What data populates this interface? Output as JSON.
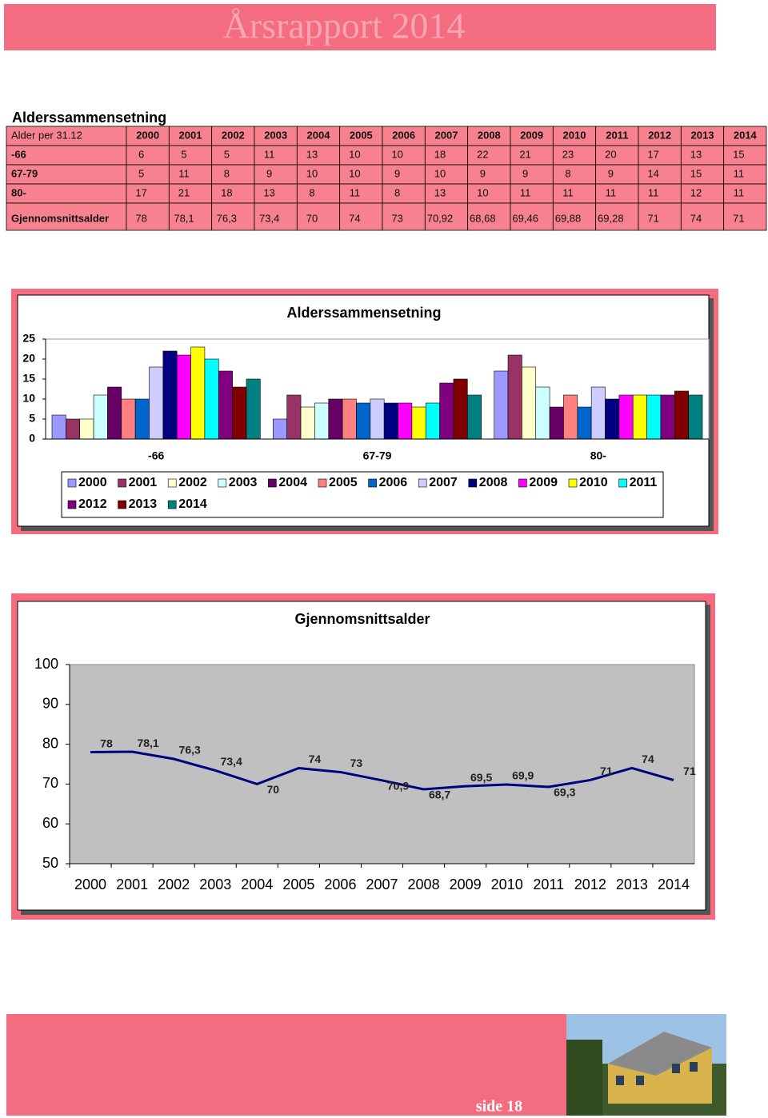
{
  "header": {
    "title": "Årsrapport 2014"
  },
  "section_title": "Alderssammensetning",
  "table": {
    "columns": [
      "Alder per 31.12",
      "2000",
      "2001",
      "2002",
      "2003",
      "2004",
      "2005",
      "2006",
      "2007",
      "2008",
      "2009",
      "2010",
      "2011",
      "2012",
      "2013",
      "2014"
    ],
    "rows": [
      [
        "-66",
        "6",
        "5",
        "5",
        "11",
        "13",
        "10",
        "10",
        "18",
        "22",
        "21",
        "23",
        "20",
        "17",
        "13",
        "15"
      ],
      [
        "67-79",
        "5",
        "11",
        "8",
        "9",
        "10",
        "10",
        "9",
        "10",
        "9",
        "9",
        "8",
        "9",
        "14",
        "15",
        "11"
      ],
      [
        "80-",
        "17",
        "21",
        "18",
        "13",
        "8",
        "11",
        "8",
        "13",
        "10",
        "11",
        "11",
        "11",
        "11",
        "12",
        "11"
      ],
      [
        "Gjennomsnittsalder",
        "78",
        "78,1",
        "76,3",
        "73,4",
        "70",
        "74",
        "73",
        "70,92",
        "68,68",
        "69,46",
        "69,88",
        "69,28",
        "71",
        "74",
        "71"
      ]
    ]
  },
  "chart_data": [
    {
      "type": "bar",
      "title": "Alderssammensetning",
      "categories": [
        "-66",
        "67-79",
        "80-"
      ],
      "ylim": [
        0,
        25
      ],
      "yticks": [
        0,
        5,
        10,
        15,
        20,
        25
      ],
      "legend": "bottom",
      "series": [
        {
          "name": "2000",
          "color": "#9999ff",
          "values": [
            6,
            5,
            17
          ]
        },
        {
          "name": "2001",
          "color": "#993366",
          "values": [
            5,
            11,
            21
          ]
        },
        {
          "name": "2002",
          "color": "#ffffcc",
          "values": [
            5,
            8,
            18
          ]
        },
        {
          "name": "2003",
          "color": "#ccffff",
          "values": [
            11,
            9,
            13
          ]
        },
        {
          "name": "2004",
          "color": "#660066",
          "values": [
            13,
            10,
            8
          ]
        },
        {
          "name": "2005",
          "color": "#ff8080",
          "values": [
            10,
            10,
            11
          ]
        },
        {
          "name": "2006",
          "color": "#0066cc",
          "values": [
            10,
            9,
            8
          ]
        },
        {
          "name": "2007",
          "color": "#ccccff",
          "values": [
            18,
            10,
            13
          ]
        },
        {
          "name": "2008",
          "color": "#000080",
          "values": [
            22,
            9,
            10
          ]
        },
        {
          "name": "2009",
          "color": "#ff00ff",
          "values": [
            21,
            9,
            11
          ]
        },
        {
          "name": "2010",
          "color": "#ffff00",
          "values": [
            23,
            8,
            11
          ]
        },
        {
          "name": "2011",
          "color": "#00ffff",
          "values": [
            20,
            9,
            11
          ]
        },
        {
          "name": "2012",
          "color": "#800080",
          "values": [
            17,
            14,
            11
          ]
        },
        {
          "name": "2013",
          "color": "#800000",
          "values": [
            13,
            15,
            12
          ]
        },
        {
          "name": "2014",
          "color": "#008080",
          "values": [
            15,
            11,
            11
          ]
        }
      ]
    },
    {
      "type": "line",
      "title": "Gjennomsnittsalder",
      "categories": [
        "2000",
        "2001",
        "2002",
        "2003",
        "2004",
        "2005",
        "2006",
        "2007",
        "2008",
        "2009",
        "2010",
        "2011",
        "2012",
        "2013",
        "2014"
      ],
      "values": [
        78,
        78.1,
        76.3,
        73.4,
        70,
        74,
        73,
        70.92,
        68.68,
        69.46,
        69.88,
        69.28,
        71,
        74,
        71
      ],
      "value_labels": [
        "78",
        "78,1",
        "76,3",
        "73,4",
        "70",
        "74",
        "73",
        "70,9",
        "68,7",
        "69,5",
        "69,9",
        "69,3",
        "71",
        "74",
        "71"
      ],
      "color": "#000080",
      "ylim": [
        50,
        100
      ],
      "yticks": [
        50,
        60,
        70,
        80,
        90,
        100
      ]
    }
  ],
  "footer": {
    "page": "side 18"
  }
}
